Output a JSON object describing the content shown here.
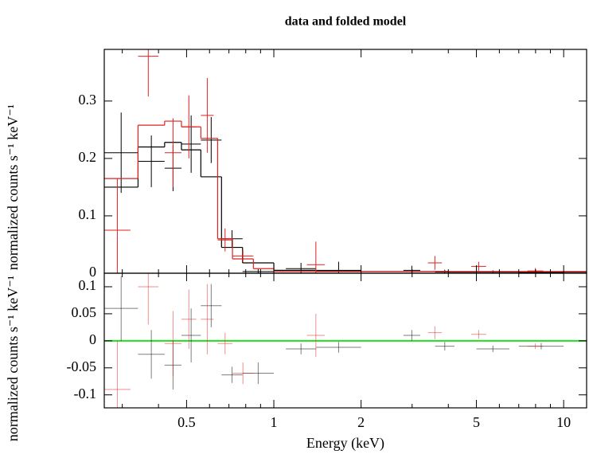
{
  "chart_data": {
    "type": "spectrum",
    "title": "data and folded model",
    "xlabel": "Energy (keV)",
    "ylabel": "normalized counts s⁻¹ keV⁻¹",
    "residual_ylabel": "normalized counts s⁻¹ keV⁻¹",
    "xscale": "log",
    "xlim": [
      0.26,
      12
    ],
    "xticks": [
      0.5,
      1,
      2,
      5,
      10
    ],
    "xminor": [
      0.3,
      0.4,
      0.6,
      0.7,
      0.8,
      0.9,
      3,
      4,
      6,
      7,
      8,
      9
    ],
    "ylim": [
      0,
      0.39
    ],
    "yticks": [
      0,
      0.1,
      0.2,
      0.3
    ],
    "y2lim": [
      -0.124,
      0.125
    ],
    "y2ticks": [
      -0.1,
      -0.05,
      0,
      0.05,
      0.1
    ],
    "residual_reference": 0,
    "residual_reference_color": "#22dd22",
    "series": [
      {
        "color": "#000000",
        "x_low": [
          0.26,
          0.34,
          0.42,
          0.48,
          0.56,
          0.66,
          0.78,
          1.1,
          1.4,
          2.8,
          3.6,
          5.0,
          7.0
        ],
        "x_high": [
          0.34,
          0.42,
          0.48,
          0.56,
          0.66,
          0.78,
          1.0,
          1.4,
          2.0,
          3.2,
          4.2,
          6.5,
          10.0
        ],
        "values": [
          0.21,
          0.195,
          0.183,
          0.225,
          0.232,
          0.06,
          0.003,
          0.008,
          0.005,
          0.005,
          0.002,
          0.002,
          0.001
        ],
        "errors": [
          0.07,
          0.045,
          0.04,
          0.05,
          0.04,
          0.015,
          0.004,
          0.01,
          0.015,
          0.008,
          0.004,
          0.003,
          0.002
        ],
        "residuals": [
          0.06,
          -0.025,
          -0.045,
          0.01,
          0.065,
          -0.063,
          -0.06,
          -0.015,
          -0.012,
          0.01,
          -0.01,
          -0.015,
          -0.01
        ],
        "residual_errors": [
          0.06,
          0.045,
          0.045,
          0.05,
          0.04,
          0.015,
          0.02,
          0.01,
          0.01,
          0.01,
          0.008,
          0.006,
          0.006
        ],
        "model_edges": [
          0.26,
          0.34,
          0.42,
          0.48,
          0.56,
          0.66,
          0.78,
          1.0,
          1.4,
          2.0,
          4.0,
          12.0
        ],
        "model": [
          0.15,
          0.22,
          0.228,
          0.215,
          0.168,
          0.045,
          0.018,
          0.005,
          0.004,
          0.003,
          0.002
        ]
      },
      {
        "color": "#dd2222",
        "x_low": [
          0.26,
          0.34,
          0.42,
          0.48,
          0.56,
          0.64,
          0.72,
          1.3,
          3.4,
          4.8,
          7.5
        ],
        "x_high": [
          0.32,
          0.4,
          0.48,
          0.54,
          0.62,
          0.72,
          0.85,
          1.5,
          3.8,
          5.4,
          8.5
        ],
        "values": [
          0.075,
          0.378,
          0.21,
          0.255,
          0.275,
          0.058,
          0.03,
          0.015,
          0.018,
          0.012,
          0.004
        ],
        "errors": [
          0.09,
          0.07,
          0.06,
          0.055,
          0.065,
          0.02,
          0.01,
          0.04,
          0.012,
          0.008,
          0.005
        ],
        "residuals": [
          -0.09,
          0.1,
          -0.005,
          0.04,
          0.04,
          -0.005,
          -0.06,
          0.01,
          0.015,
          0.012,
          -0.01
        ],
        "residual_errors": [
          0.09,
          0.07,
          0.06,
          0.055,
          0.065,
          0.02,
          0.02,
          0.04,
          0.012,
          0.008,
          0.005
        ],
        "model_edges": [
          0.26,
          0.34,
          0.42,
          0.48,
          0.56,
          0.64,
          0.72,
          0.85,
          1.0,
          12.0
        ],
        "model": [
          0.165,
          0.258,
          0.265,
          0.255,
          0.235,
          0.06,
          0.025,
          0.008,
          0.003
        ]
      }
    ]
  }
}
